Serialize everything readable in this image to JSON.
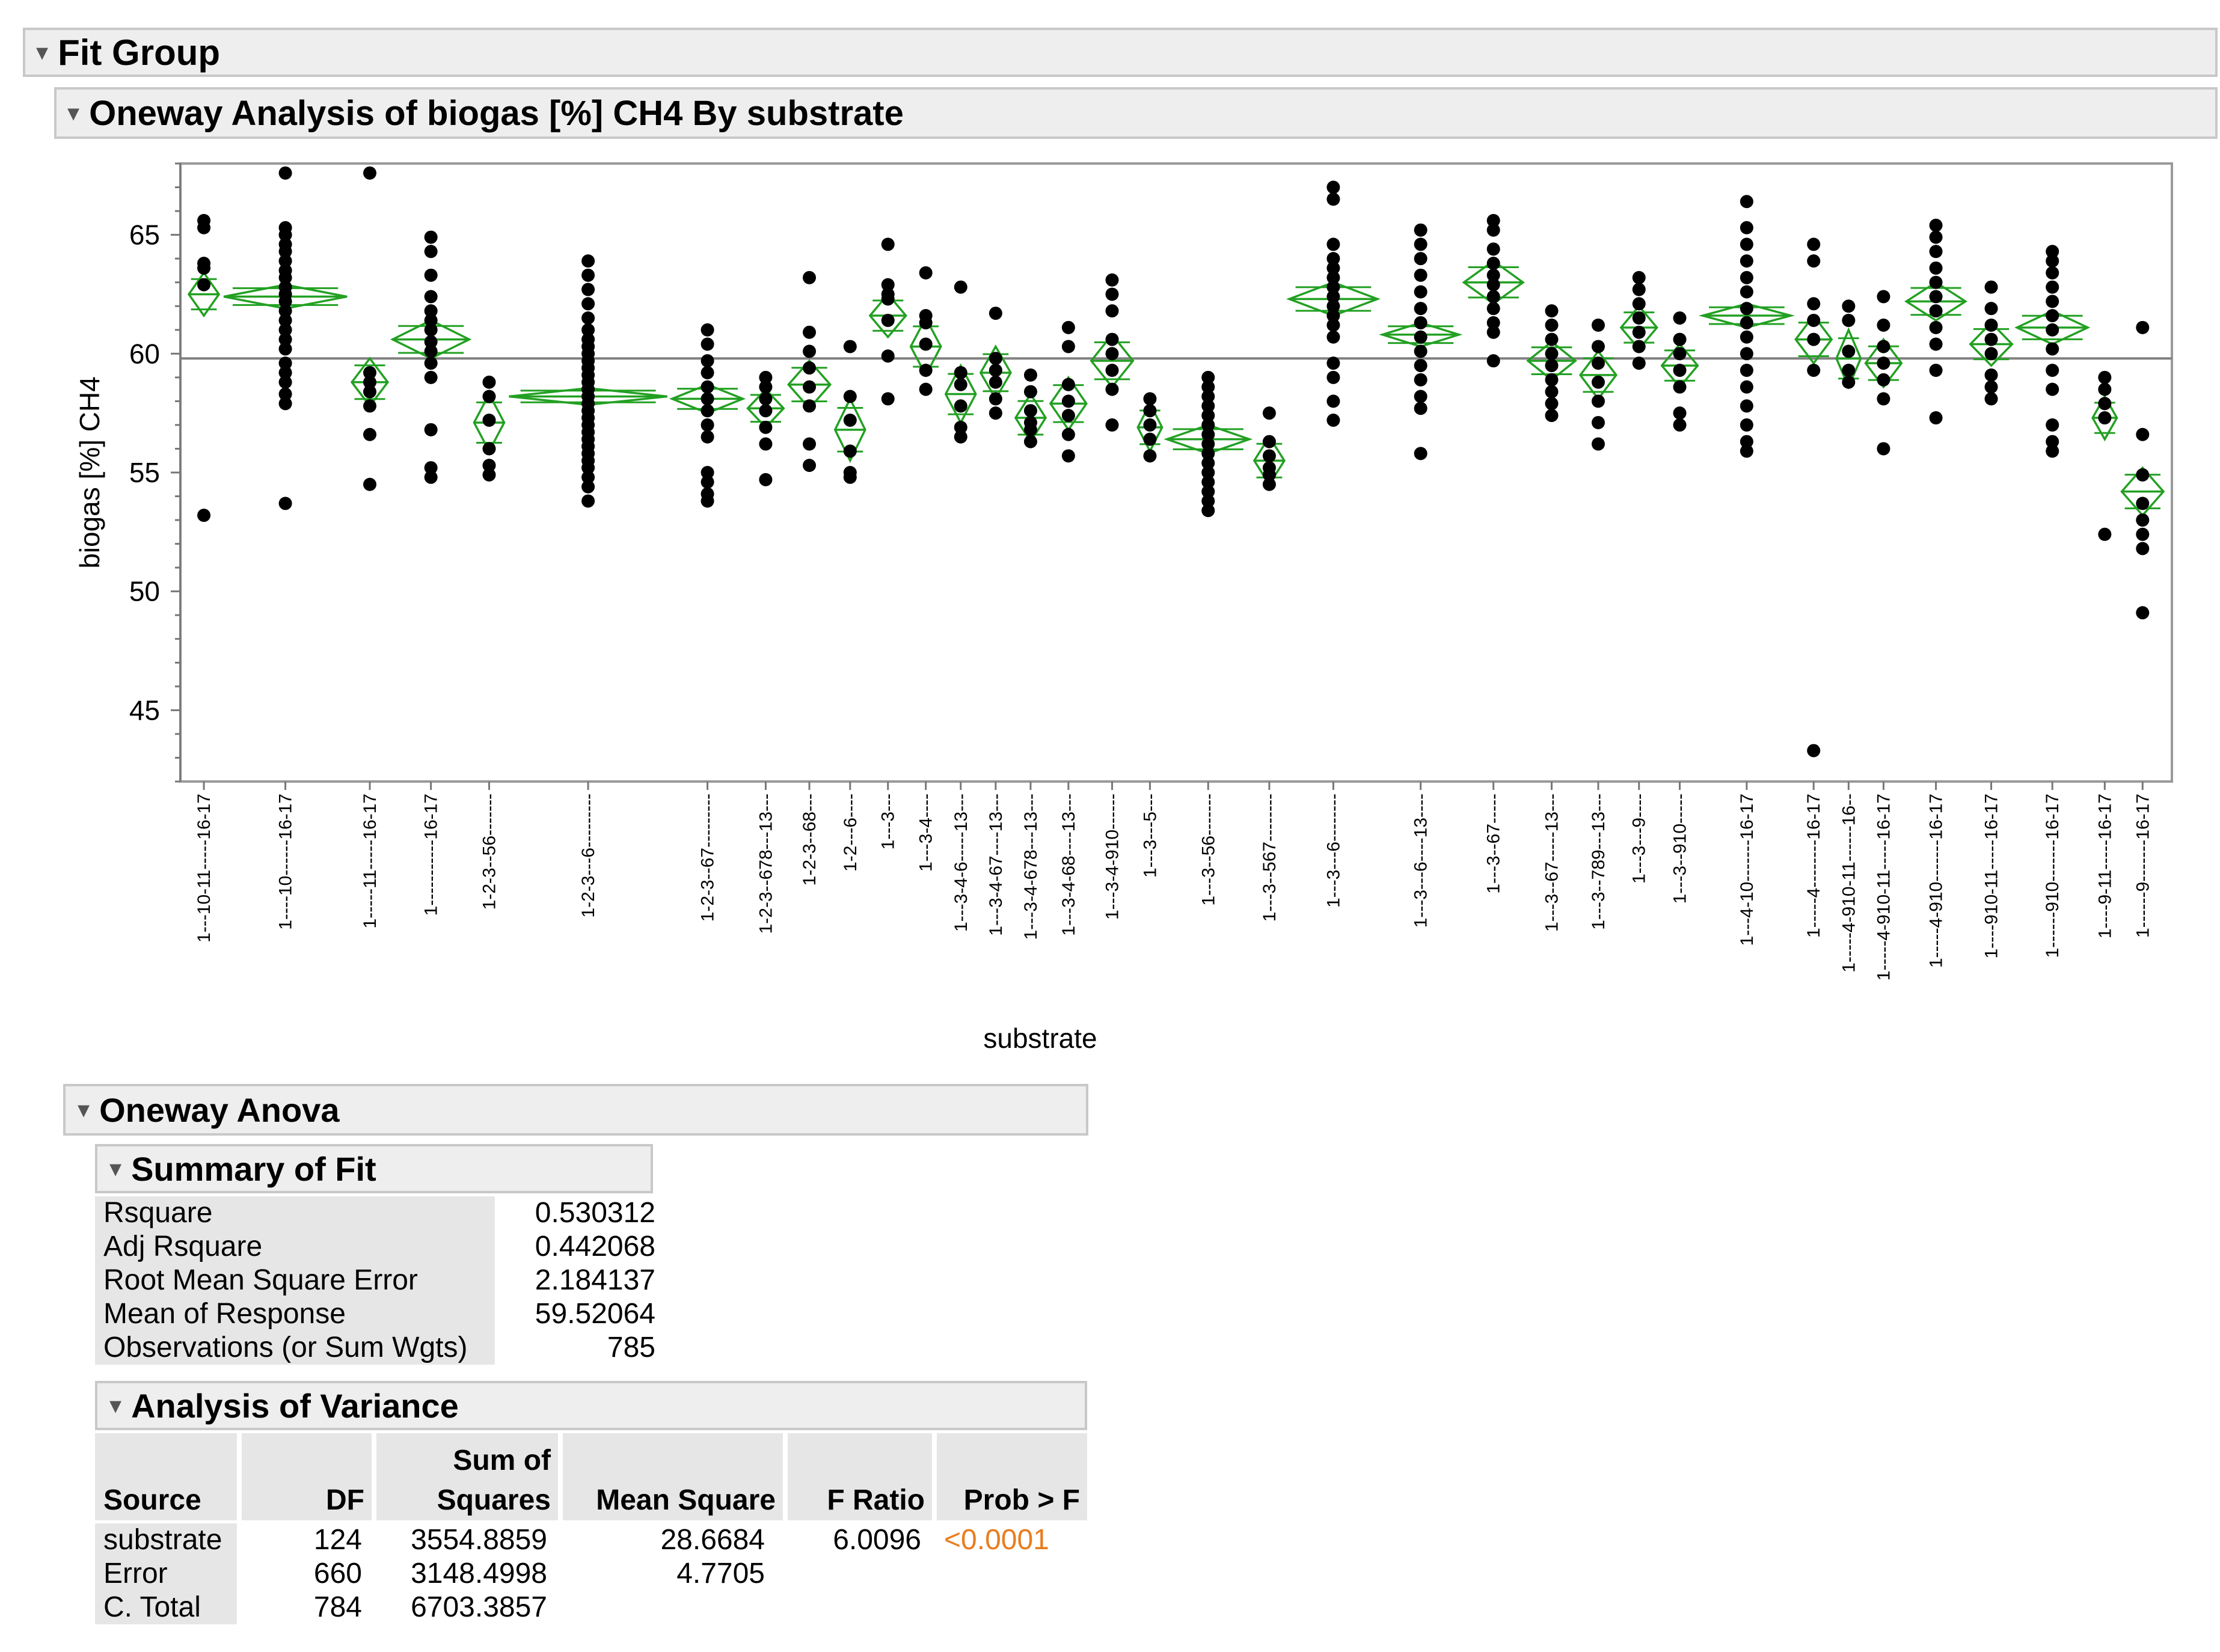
{
  "fit_group": {
    "title": "Fit Group"
  },
  "oneway": {
    "title": "Oneway Analysis of biogas [%] CH4 By substrate"
  },
  "chart_data": {
    "type": "scatter",
    "subtype": "oneway-means-diamonds",
    "title": "Oneway Analysis of biogas [%] CH4 By substrate",
    "xlabel": "substrate",
    "ylabel": "biogas [%] CH4",
    "ylim": [
      42,
      68
    ],
    "yticks": [
      45,
      50,
      55,
      60,
      65
    ],
    "grand_mean": 59.8,
    "colors": {
      "diamond": "#22a022",
      "point": "#000000",
      "mean_line": "#808080"
    },
    "groups": [
      {
        "label": "1---10-11-----16-17",
        "mean": 62.5,
        "ci": 0.9,
        "values": [
          65.6,
          65.3,
          63.8,
          63.6,
          62.9,
          53.2
        ]
      },
      {
        "label": "1----10------16-17",
        "mean": 62.4,
        "ci": 0.5,
        "values": [
          67.6,
          65.3,
          65.0,
          64.6,
          64.3,
          63.9,
          63.5,
          63.2,
          62.8,
          62.5,
          62.2,
          61.8,
          61.4,
          61.0,
          60.6,
          60.2,
          59.6,
          59.2,
          58.8,
          58.3,
          57.9,
          53.7
        ]
      },
      {
        "label": "1-----11-----16-17",
        "mean": 58.8,
        "ci": 1.0,
        "values": [
          67.6,
          59.2,
          58.8,
          58.4,
          57.8,
          56.6,
          54.5
        ]
      },
      {
        "label": "1-----------16-17",
        "mean": 60.6,
        "ci": 0.8,
        "values": [
          64.9,
          64.3,
          63.3,
          62.4,
          61.8,
          61.4,
          61.0,
          60.5,
          60.1,
          59.6,
          59.0,
          56.8,
          55.2,
          54.8
        ]
      },
      {
        "label": "1-2-3--56-------",
        "mean": 57.1,
        "ci": 1.2,
        "values": [
          58.8,
          58.2,
          57.2,
          56.0,
          55.3,
          54.9
        ]
      },
      {
        "label": "1-2-3---6---------",
        "mean": 58.2,
        "ci": 0.35,
        "values": [
          63.9,
          63.3,
          62.7,
          62.1,
          61.5,
          61.0,
          60.6,
          60.3,
          60.0,
          59.7,
          59.4,
          59.1,
          58.8,
          58.5,
          58.2,
          57.9,
          57.6,
          57.3,
          57.0,
          56.7,
          56.4,
          56.1,
          55.8,
          55.5,
          55.2,
          54.8,
          54.4,
          53.8
        ]
      },
      {
        "label": "1-2-3--67---------",
        "mean": 58.1,
        "ci": 0.6,
        "values": [
          61.0,
          60.4,
          59.7,
          59.2,
          58.6,
          58.1,
          57.6,
          57.0,
          56.5,
          55.0,
          54.6,
          54.1,
          53.8
        ]
      },
      {
        "label": "1-2-3--678---13---",
        "mean": 57.7,
        "ci": 0.8,
        "values": [
          59.0,
          58.6,
          58.1,
          57.6,
          56.9,
          56.2,
          54.7
        ]
      },
      {
        "label": "1-2-3--68---",
        "mean": 58.7,
        "ci": 1.0,
        "values": [
          63.2,
          60.9,
          60.1,
          59.4,
          58.6,
          57.8,
          56.2,
          55.3
        ]
      },
      {
        "label": "1-2---6----",
        "mean": 56.8,
        "ci": 1.3,
        "values": [
          60.3,
          58.2,
          57.2,
          55.9,
          55.0,
          54.8
        ]
      },
      {
        "label": "1---3---",
        "mean": 61.6,
        "ci": 0.9,
        "values": [
          64.6,
          62.9,
          62.5,
          62.3,
          61.4,
          59.9,
          58.1
        ]
      },
      {
        "label": "1---3-4----",
        "mean": 60.3,
        "ci": 1.2,
        "values": [
          63.4,
          61.6,
          61.3,
          60.4,
          59.3,
          58.5
        ]
      },
      {
        "label": "1---3-4-6-----13---",
        "mean": 58.3,
        "ci": 1.2,
        "values": [
          62.8,
          59.2,
          58.7,
          57.8,
          56.9,
          56.5
        ]
      },
      {
        "label": "1---3-4-67----13---",
        "mean": 59.2,
        "ci": 1.1,
        "values": [
          61.7,
          59.8,
          59.3,
          58.8,
          58.1,
          57.5
        ]
      },
      {
        "label": "1---3-4-678---13---",
        "mean": 57.3,
        "ci": 1.0,
        "values": [
          59.1,
          58.4,
          57.6,
          57.1,
          56.8,
          56.3
        ]
      },
      {
        "label": "1---3-4-68----13---",
        "mean": 57.9,
        "ci": 1.1,
        "values": [
          61.1,
          60.3,
          58.7,
          58.0,
          57.4,
          56.6,
          55.7
        ]
      },
      {
        "label": "1---3-4-910------",
        "mean": 59.7,
        "ci": 1.1,
        "values": [
          63.1,
          62.5,
          61.8,
          60.6,
          60.0,
          59.3,
          58.5,
          57.0
        ]
      },
      {
        "label": "1---3---5---",
        "mean": 56.9,
        "ci": 1.0,
        "values": [
          58.1,
          57.6,
          57.0,
          56.4,
          55.7
        ]
      },
      {
        "label": "1---3--56-------",
        "mean": 56.4,
        "ci": 0.6,
        "values": [
          59.0,
          58.6,
          58.2,
          57.8,
          57.4,
          57.0,
          56.6,
          56.2,
          55.8,
          55.4,
          55.0,
          54.6,
          54.2,
          53.8,
          53.4
        ]
      },
      {
        "label": "1---3--567--------",
        "mean": 55.5,
        "ci": 1.0,
        "values": [
          57.5,
          56.3,
          55.7,
          55.2,
          54.9,
          54.5
        ]
      },
      {
        "label": "1---3---6--------",
        "mean": 62.3,
        "ci": 0.7,
        "values": [
          67.0,
          66.5,
          64.6,
          64.0,
          63.6,
          63.2,
          62.8,
          62.4,
          62.0,
          61.6,
          61.2,
          60.7,
          59.6,
          59.0,
          58.0,
          57.2
        ]
      },
      {
        "label": "1---3---6----13----",
        "mean": 60.8,
        "ci": 0.5,
        "values": [
          65.2,
          64.6,
          64.0,
          63.3,
          62.6,
          61.9,
          61.3,
          60.7,
          60.1,
          59.5,
          58.9,
          58.2,
          57.7,
          55.8
        ]
      },
      {
        "label": "1---3--67-----",
        "mean": 63.0,
        "ci": 0.9,
        "values": [
          65.6,
          65.2,
          64.4,
          63.8,
          63.3,
          62.9,
          62.4,
          61.9,
          61.3,
          60.9,
          59.7
        ]
      },
      {
        "label": "1---3--67-----13---",
        "mean": 59.7,
        "ci": 0.8,
        "values": [
          61.8,
          61.2,
          60.6,
          60.0,
          59.5,
          58.9,
          58.4,
          57.9,
          57.4
        ]
      },
      {
        "label": "1---3--789---13---",
        "mean": 59.1,
        "ci": 1.0,
        "values": [
          61.2,
          60.3,
          59.6,
          58.8,
          58.0,
          57.1,
          56.2
        ]
      },
      {
        "label": "1---3---9----",
        "mean": 61.1,
        "ci": 0.9,
        "values": [
          63.2,
          62.7,
          62.1,
          61.5,
          60.9,
          60.3,
          59.6
        ]
      },
      {
        "label": "1---3--910-----",
        "mean": 59.5,
        "ci": 0.9,
        "values": [
          61.5,
          60.6,
          60.0,
          59.3,
          58.6,
          57.5,
          57.0
        ]
      },
      {
        "label": "1---4-10-------16-17",
        "mean": 61.6,
        "ci": 0.5,
        "values": [
          66.4,
          65.3,
          64.6,
          63.9,
          63.2,
          62.6,
          61.9,
          61.3,
          60.7,
          60.0,
          59.3,
          58.6,
          57.8,
          57.0,
          56.3,
          55.9
        ]
      },
      {
        "label": "1-----4--------16-17",
        "mean": 60.6,
        "ci": 1.0,
        "values": [
          64.6,
          63.9,
          62.1,
          61.4,
          60.6,
          59.3,
          43.3
        ]
      },
      {
        "label": "1-----4-910-11------16--",
        "mean": 59.8,
        "ci": 1.2,
        "values": [
          62.0,
          61.4,
          60.1,
          59.3,
          58.8
        ]
      },
      {
        "label": "1-----4-910-11-----16-17",
        "mean": 59.6,
        "ci": 1.0,
        "values": [
          62.4,
          61.2,
          60.3,
          59.6,
          58.9,
          58.1,
          56.0
        ]
      },
      {
        "label": "1-----4-910-------16-17",
        "mean": 62.2,
        "ci": 0.8,
        "values": [
          65.4,
          64.9,
          64.3,
          63.6,
          63.0,
          62.4,
          61.8,
          61.1,
          60.4,
          59.3,
          57.3
        ]
      },
      {
        "label": "1----910-11-----16-17",
        "mean": 60.4,
        "ci": 0.9,
        "values": [
          62.8,
          61.9,
          61.2,
          60.6,
          60.0,
          59.1,
          58.6,
          58.1
        ]
      },
      {
        "label": "1------910-------16-17",
        "mean": 61.1,
        "ci": 0.7,
        "values": [
          64.3,
          63.9,
          63.4,
          62.8,
          62.2,
          61.6,
          61.0,
          60.2,
          59.3,
          58.5,
          57.0,
          56.3,
          55.9
        ]
      },
      {
        "label": "1----9-11-----16-17",
        "mean": 57.3,
        "ci": 0.9,
        "values": [
          59.0,
          58.5,
          57.9,
          57.3,
          52.4
        ]
      },
      {
        "label": "1------9-------16-17",
        "mean": 54.2,
        "ci": 1.0,
        "values": [
          61.1,
          56.6,
          54.9,
          53.7,
          53.0,
          52.4,
          51.8,
          49.1
        ]
      }
    ]
  },
  "anova": {
    "title": "Oneway Anova",
    "summary_of_fit": {
      "title": "Summary of Fit",
      "rows": [
        {
          "label": "Rsquare",
          "value": "0.530312"
        },
        {
          "label": "Adj Rsquare",
          "value": "0.442068"
        },
        {
          "label": "Root Mean Square Error",
          "value": "2.184137"
        },
        {
          "label": "Mean of Response",
          "value": "59.52064"
        },
        {
          "label": "Observations (or Sum Wgts)",
          "value": "785"
        }
      ]
    },
    "analysis_of_variance": {
      "title": "Analysis of Variance",
      "headers": {
        "source": "Source",
        "df": "DF",
        "ss_top": "Sum of",
        "ss_bottom": "Squares",
        "ms": "Mean Square",
        "f": "F Ratio",
        "p": "Prob > F"
      },
      "rows": [
        {
          "source": "substrate",
          "df": "124",
          "ss": "3554.8859",
          "ms": "28.6684",
          "f": "6.0096",
          "p": "<0.0001"
        },
        {
          "source": "Error",
          "df": "660",
          "ss": "3148.4998",
          "ms": "4.7705",
          "f": "",
          "p": ""
        },
        {
          "source": "C. Total",
          "df": "784",
          "ss": "6703.3857",
          "ms": "",
          "f": "",
          "p": ""
        }
      ]
    }
  }
}
